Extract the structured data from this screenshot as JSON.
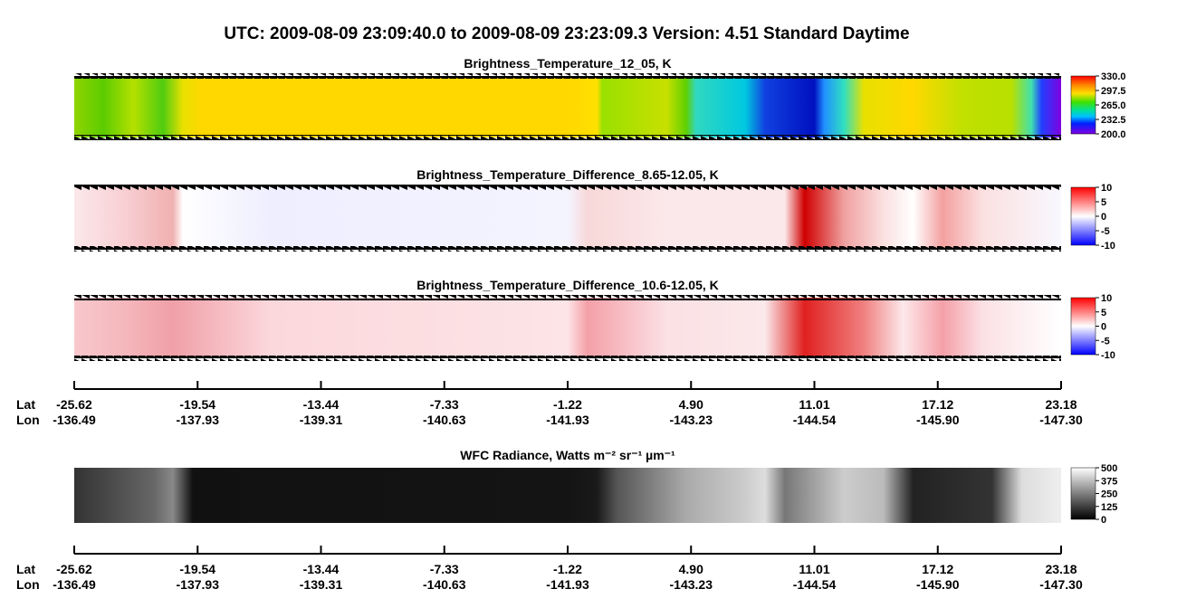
{
  "title": "UTC:  2009-08-09   23:09:40.0  to  2009-08-09   23:23:09.3    Version: 4.51  Standard Daytime",
  "chart_data": [
    {
      "type": "heatmap",
      "title": "Brightness_Temperature_12_05, K",
      "clim": [
        200,
        330
      ],
      "cticks": [
        {
          "value": 200,
          "label": "200.0"
        },
        232.5,
        {
          "value": 265,
          "label": "265.0"
        },
        297.5,
        {
          "value": 330,
          "label": "330.0"
        }
      ]
    },
    {
      "type": "heatmap",
      "title": "Brightness_Temperature_Difference_8.65-12.05, K",
      "clim": [
        -10,
        10
      ],
      "cticks": [
        -10,
        -5,
        0,
        5,
        10
      ]
    },
    {
      "type": "heatmap",
      "title": "Brightness_Temperature_Difference_10.6-12.05, K",
      "clim": [
        -10,
        10
      ],
      "cticks": [
        -10,
        -5,
        0,
        5,
        10
      ]
    },
    {
      "type": "heatmap",
      "title": "WFC Radiance, Watts m⁻² sr⁻¹ µm⁻¹",
      "clim": [
        0,
        500
      ],
      "cticks": [
        0,
        125,
        250,
        375,
        500
      ]
    }
  ],
  "position_axis": {
    "row_labels": [
      "Lat",
      "Lon"
    ],
    "lat": [
      -25.62,
      -19.54,
      -13.44,
      -7.33,
      -1.22,
      {
        "value": 4.9,
        "label": "4.90"
      },
      11.01,
      17.12,
      23.18
    ],
    "lon": [
      -136.49,
      -137.93,
      -139.31,
      -140.63,
      -141.93,
      -143.23,
      -144.54,
      {
        "value": -145.9,
        "label": "-145.90"
      },
      {
        "value": -147.3,
        "label": "-147.30"
      }
    ]
  }
}
